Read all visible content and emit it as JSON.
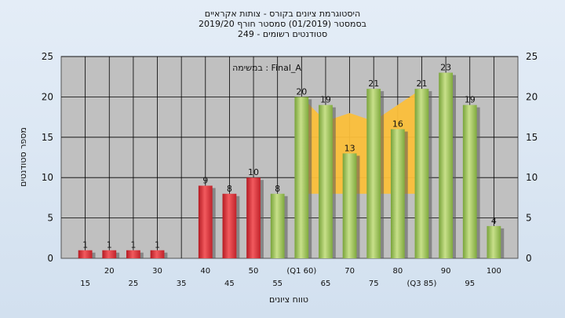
{
  "chart_data": {
    "type": "bar",
    "title_lines": [
      "היסטוגרמת ציונים בקורס - צותות אקראיים",
      "בסמסטר (01/2019) סמסטר חורף 2019/20",
      "סטודנטים רשומים - 249"
    ],
    "legend_text": "במשימה : Final_A",
    "xlabel": "טווח ציונים",
    "ylabel": "מספר סטודנטים",
    "ylim": [
      0,
      25
    ],
    "yticks": [
      0,
      5,
      10,
      15,
      20,
      25
    ],
    "x_tick_labels": [
      "15",
      "20",
      "25",
      "30",
      "35",
      "40",
      "45",
      "50",
      "55",
      "(Q1 60)",
      "65",
      "70",
      "75",
      "80",
      "(Q3 85)",
      "90",
      "95",
      "100"
    ],
    "x_min": 10,
    "x_max": 105,
    "bars": [
      {
        "x": 15,
        "value": 1,
        "color": "red"
      },
      {
        "x": 20,
        "value": 1,
        "color": "red"
      },
      {
        "x": 25,
        "value": 1,
        "color": "red"
      },
      {
        "x": 30,
        "value": 1,
        "color": "red"
      },
      {
        "x": 40,
        "value": 9,
        "color": "red"
      },
      {
        "x": 45,
        "value": 8,
        "color": "red"
      },
      {
        "x": 50,
        "value": 10,
        "color": "red"
      },
      {
        "x": 55,
        "value": 8,
        "color": "green"
      },
      {
        "x": 60,
        "value": 20,
        "color": "green"
      },
      {
        "x": 65,
        "value": 19,
        "color": "green"
      },
      {
        "x": 70,
        "value": 13,
        "color": "green"
      },
      {
        "x": 75,
        "value": 21,
        "color": "green"
      },
      {
        "x": 80,
        "value": 16,
        "color": "green"
      },
      {
        "x": 85,
        "value": 21,
        "color": "green"
      },
      {
        "x": 90,
        "value": 23,
        "color": "green"
      },
      {
        "x": 95,
        "value": 19,
        "color": "green"
      },
      {
        "x": 100,
        "value": 4,
        "color": "green"
      }
    ],
    "quartile_band": {
      "points": [
        [
          60,
          8
        ],
        [
          60,
          20
        ],
        [
          65,
          17
        ],
        [
          70,
          18
        ],
        [
          75,
          17
        ],
        [
          80,
          19
        ],
        [
          85,
          21
        ],
        [
          85,
          8
        ]
      ],
      "color": "#fbbf3a"
    },
    "colors": {
      "red": "#e8343a",
      "green": "#a5c75e",
      "plot_bg": "#c0c0c0",
      "grid": "#000000"
    },
    "grid": true
  }
}
